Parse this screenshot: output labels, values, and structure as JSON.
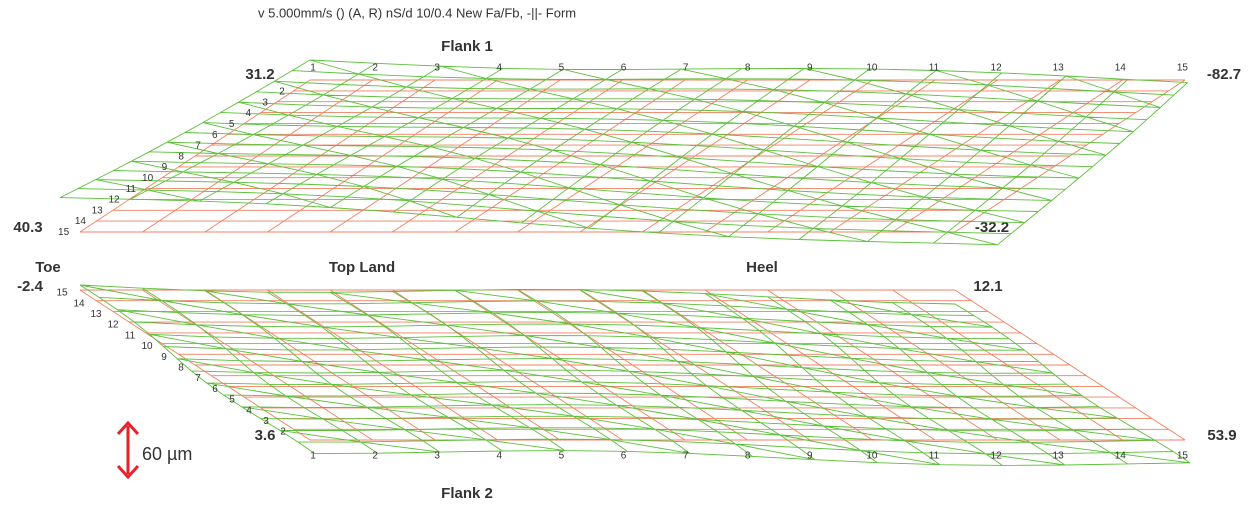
{
  "header": "v 5.000mm/s () (A, R) nS/d 10/0.4 New Fa/Fb, -||- Form",
  "labels": {
    "toe": "Toe",
    "top_land": "Top Land",
    "heel": "Heel",
    "scale": "60 µm"
  },
  "flank1": {
    "title": "Flank 1",
    "corner_values": [
      31.2,
      -82.7,
      40.3,
      -32.2
    ],
    "columns": [
      1,
      2,
      3,
      4,
      5,
      6,
      7,
      8,
      9,
      10,
      11,
      12,
      13,
      14,
      15
    ],
    "rows": [
      2,
      3,
      4,
      5,
      6,
      7,
      8,
      9,
      10,
      11,
      12,
      13,
      14,
      15
    ]
  },
  "flank2": {
    "title": "Flank 2",
    "corner_values": [
      -2.4,
      12.1,
      3.6,
      53.9
    ],
    "columns": [
      1,
      2,
      3,
      4,
      5,
      6,
      7,
      8,
      9,
      10,
      11,
      12,
      13,
      14,
      15
    ],
    "rows": [
      15,
      14,
      13,
      12,
      11,
      10,
      9,
      8,
      7,
      6,
      5,
      4,
      3,
      2
    ]
  }
}
